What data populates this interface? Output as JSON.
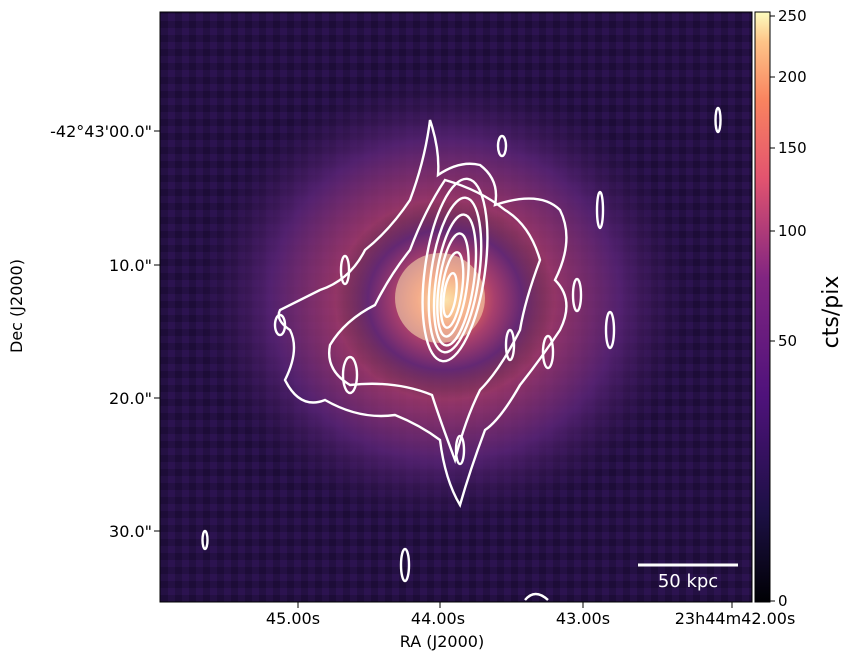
{
  "figure": {
    "x_axis": {
      "label": "RA (J2000)",
      "ticks": [
        "45.00s",
        "44.00s",
        "43.00s",
        "23h44m42.00s"
      ]
    },
    "y_axis": {
      "label": "Dec (J2000)",
      "ticks": [
        "-42°43'00.0\"",
        "10.0\"",
        "20.0\"",
        "30.0\""
      ]
    },
    "colorbar": {
      "label": "cts/pix",
      "ticks": [
        "250",
        "200",
        "150",
        "100",
        "50",
        "0"
      ],
      "colormap": "magma"
    },
    "scale_bar": {
      "label": "50 kpc"
    },
    "image": {
      "description_colors": {
        "background": "#1a0c33",
        "peak": "#fcd9a0",
        "contours": "#ffffff"
      }
    }
  }
}
